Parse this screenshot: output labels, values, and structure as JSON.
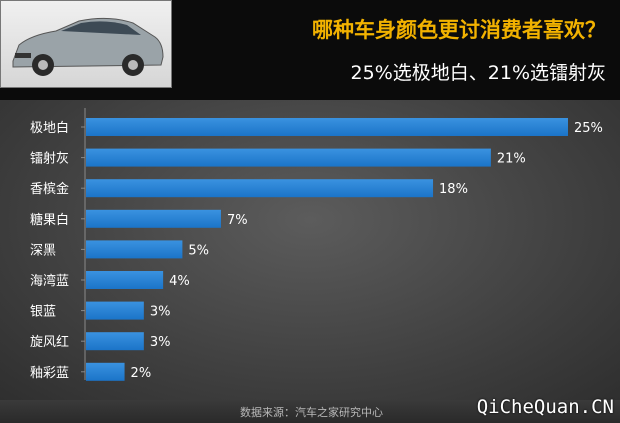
{
  "header": {
    "title": "哪种车身颜色更讨消费者喜欢？",
    "subtitle": "25%选极地白、21%选镭射灰"
  },
  "footer": {
    "source": "数据来源：汽车之家研究中心",
    "watermark": "QiCheQuan.CN"
  },
  "colors": {
    "bar": "#1b74c8",
    "title": "#f2b200",
    "background": "#4a4a4a"
  },
  "chart_data": {
    "type": "bar",
    "orientation": "horizontal",
    "categories": [
      "极地白",
      "镭射灰",
      "香槟金",
      "糖果白",
      "深黑",
      "海湾蓝",
      "银蓝",
      "旋风红",
      "釉彩蓝"
    ],
    "values": [
      25,
      21,
      18,
      7,
      5,
      4,
      3,
      3,
      2
    ],
    "value_labels": [
      "25%",
      "21%",
      "18%",
      "7%",
      "5%",
      "4%",
      "3%",
      "3%",
      "2%"
    ],
    "title": "哪种车身颜色更讨消费者喜欢？",
    "subtitle": "25%选极地白、21%选镭射灰",
    "xlabel": "",
    "ylabel": "",
    "xlim": [
      0,
      25
    ],
    "grid": false,
    "legend": "none"
  }
}
